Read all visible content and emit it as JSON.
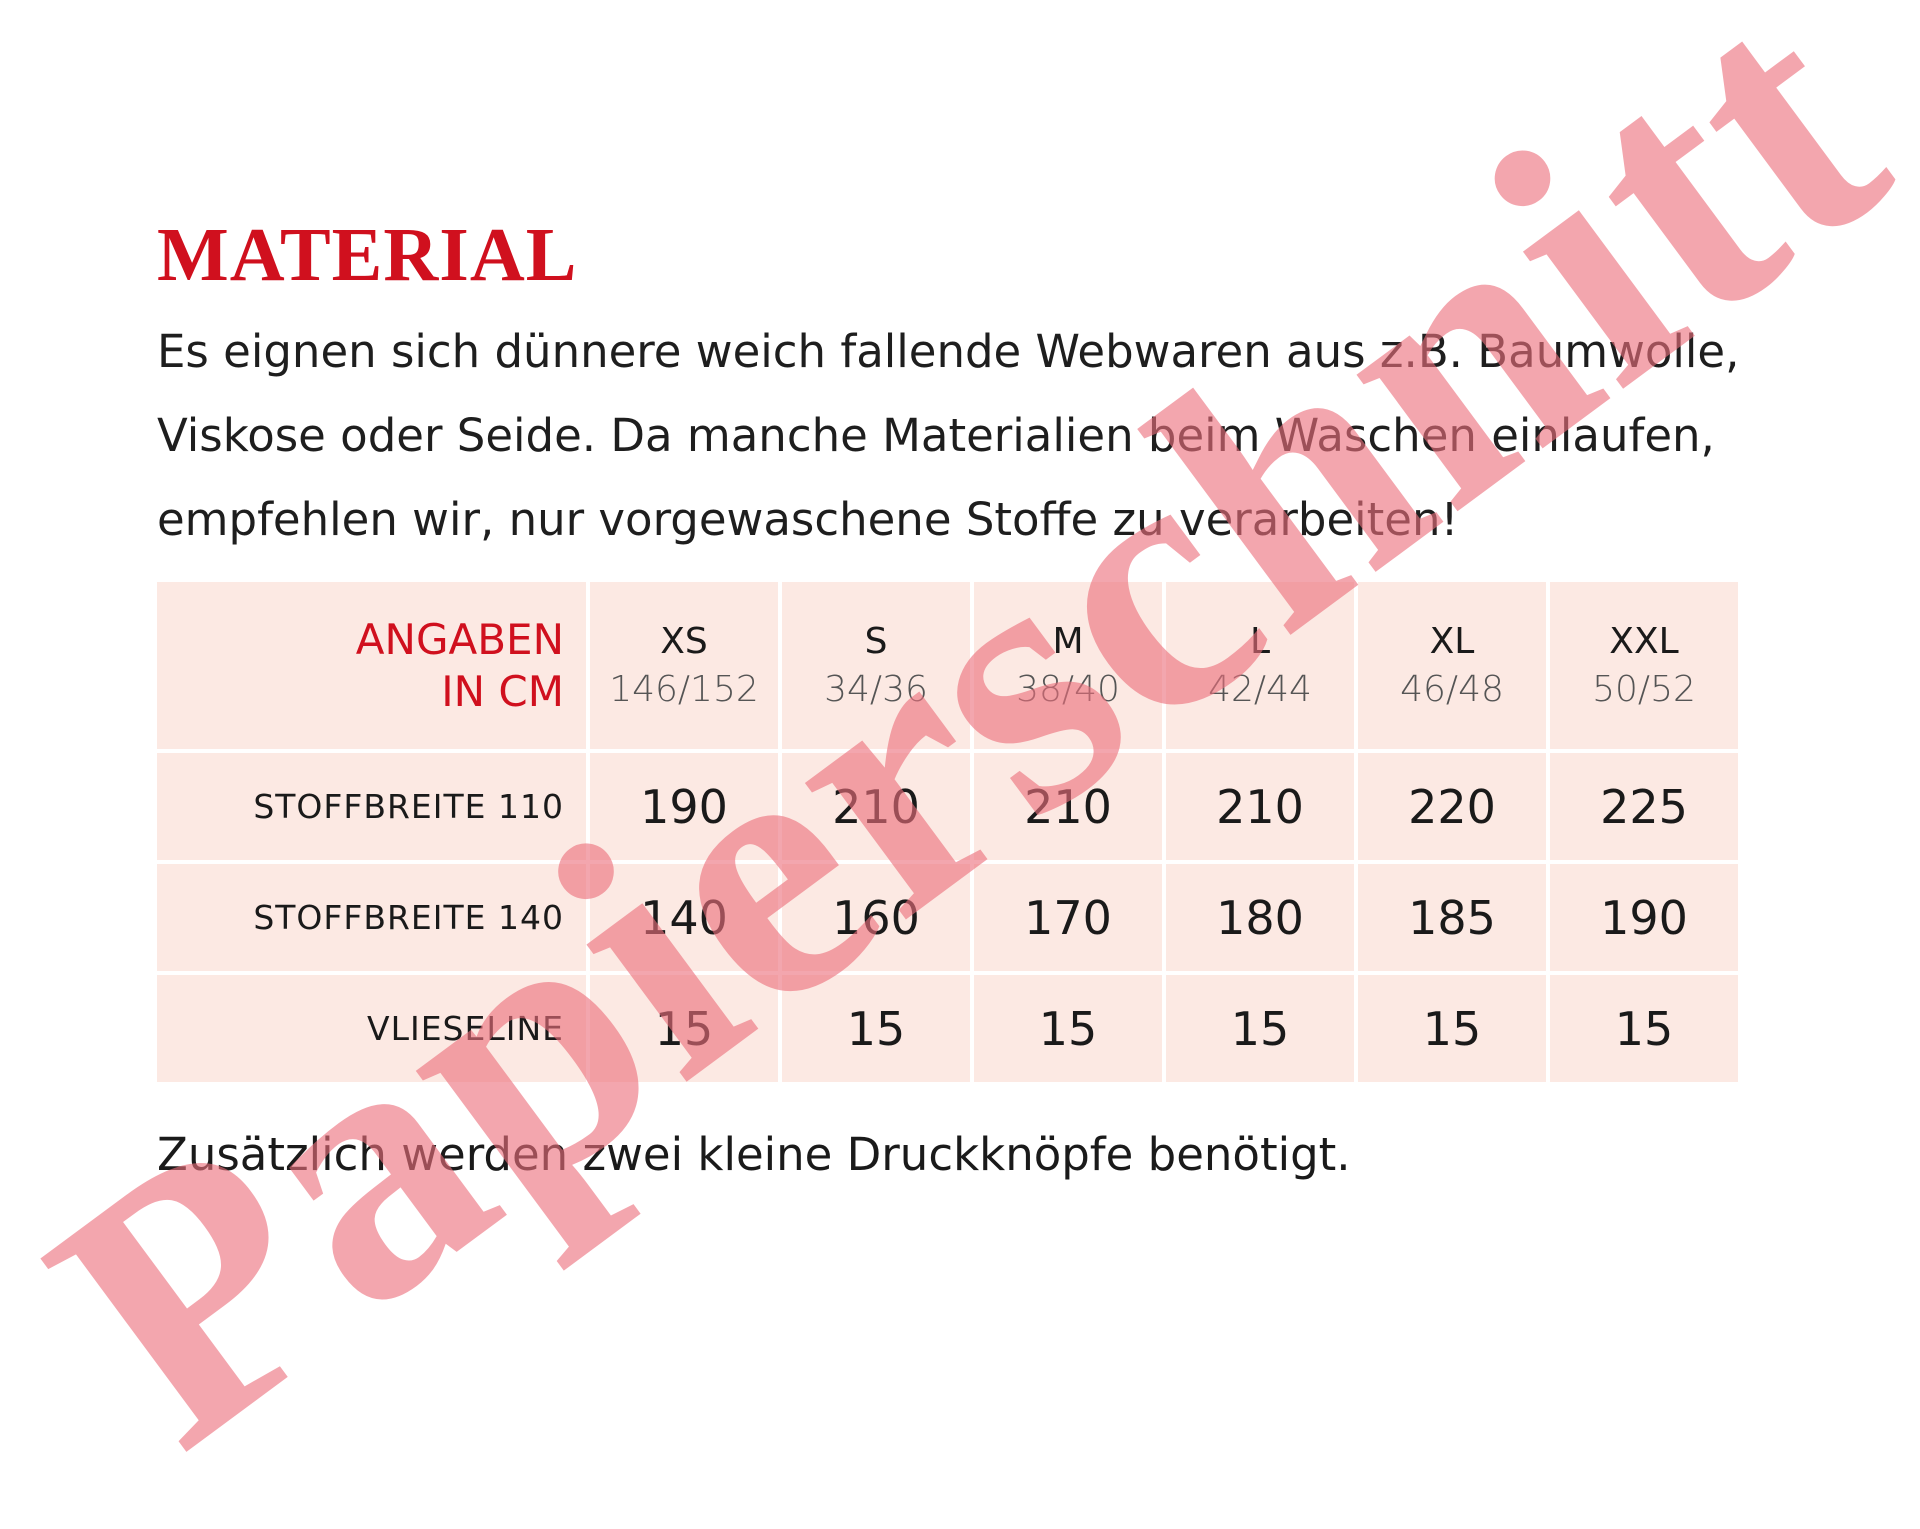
{
  "title": "MATERIAL",
  "intro_lines": [
    "Es eignen sich dünnere weich fallende Webwaren aus z.B.  Baumwolle,",
    "Viskose oder Seide. Da manche Materialien beim Waschen einlaufen,",
    "empfehlen wir, nur vorgewaschene Stoffe zu verarbeiten!"
  ],
  "table": {
    "header_label": [
      "ANGABEN",
      "IN CM"
    ],
    "sizes": [
      {
        "size": "XS",
        "fit": "146/152"
      },
      {
        "size": "S",
        "fit": "34/36"
      },
      {
        "size": "M",
        "fit": "38/40"
      },
      {
        "size": "L",
        "fit": "42/44"
      },
      {
        "size": "XL",
        "fit": "46/48"
      },
      {
        "size": "XXL",
        "fit": "50/52"
      }
    ],
    "rows": [
      {
        "label": "STOFFBREITE 110",
        "values": [
          "190",
          "210",
          "210",
          "210",
          "220",
          "225"
        ]
      },
      {
        "label": "STOFFBREITE 140",
        "values": [
          "140",
          "160",
          "170",
          "180",
          "185",
          "190"
        ]
      },
      {
        "label": "VLIESELINE",
        "values": [
          "15",
          "15",
          "15",
          "15",
          "15",
          "15"
        ]
      }
    ]
  },
  "footer": "Zusätzlich werden zwei kleine Druckknöpfe benötigt.",
  "watermark": "Papierschnitt",
  "colors": {
    "accent": "#d0101e",
    "cell_bg": "#fce9e3",
    "watermark": "#ec707c"
  }
}
